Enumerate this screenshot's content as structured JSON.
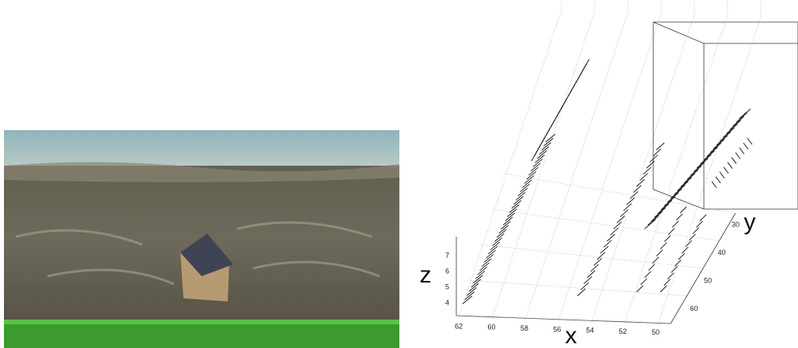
{
  "plot": {
    "axis_labels": {
      "x": "x",
      "y": "y",
      "z": "z"
    },
    "x_ticks": [
      "62",
      "60",
      "58",
      "56",
      "54",
      "52",
      "50"
    ],
    "y_ticks": [
      "30",
      "40",
      "50",
      "60"
    ],
    "z_ticks": [
      "7",
      "6",
      "5",
      "4"
    ]
  }
}
